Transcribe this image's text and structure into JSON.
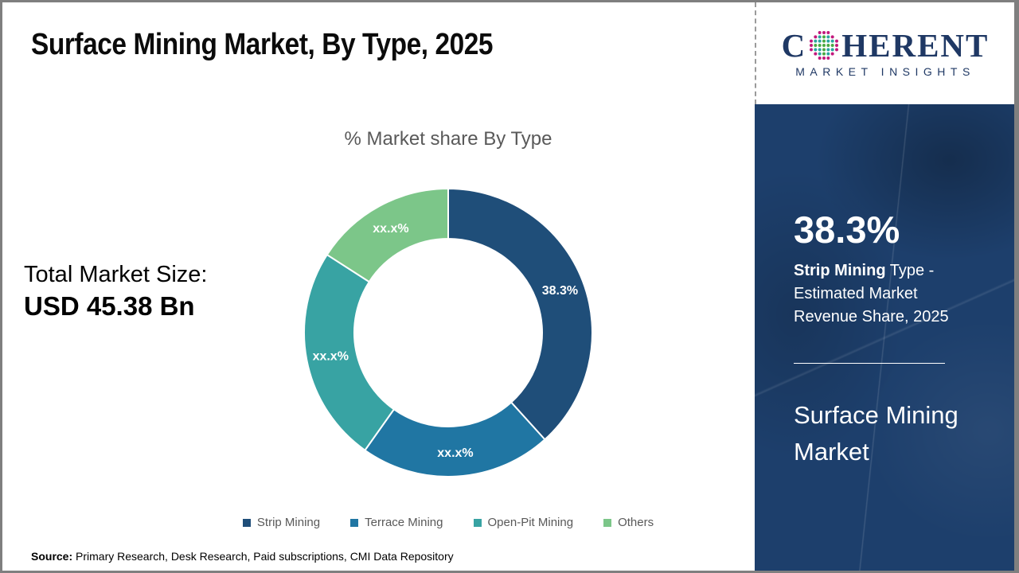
{
  "header": {
    "title": "Surface Mining Market, By Type, 2025"
  },
  "logo": {
    "word_start": "C",
    "word_end": "HERENT",
    "tagline": "MARKET INSIGHTS",
    "navy": "#1F3864",
    "globe_colors": {
      "outer": "#C2187C",
      "mid": "#2AA5A0",
      "inner": "#49A942"
    }
  },
  "chart_data": {
    "type": "pie",
    "donut": true,
    "inner_ratio": 0.65,
    "start_angle_deg": 0,
    "title": "% Market share By Type",
    "categories": [
      "Strip Mining",
      "Terrace Mining",
      "Open-Pit Mining",
      "Others"
    ],
    "values": [
      38.3,
      21.5,
      24.3,
      15.9
    ],
    "labels": [
      "38.3%",
      "xx.x%",
      "xx.x%",
      "xx.x%"
    ],
    "colors": [
      "#1F4E79",
      "#2076A3",
      "#38A3A3",
      "#7CC689"
    ],
    "legend_position": "bottom",
    "label_color": "#ffffff"
  },
  "left_panel": {
    "total_label": "Total Market Size:",
    "total_value": "USD 45.38 Bn"
  },
  "sidebar": {
    "bg": "#1d3f6c",
    "stat_value": "38.3%",
    "stat_highlight": "Strip Mining",
    "stat_rest": " Type - Estimated Market Revenue Share, 2025",
    "product_line": "Surface Mining Market"
  },
  "footer": {
    "source_label": "Source:",
    "source_text": " Primary Research, Desk Research, Paid subscriptions, CMI Data Repository"
  }
}
